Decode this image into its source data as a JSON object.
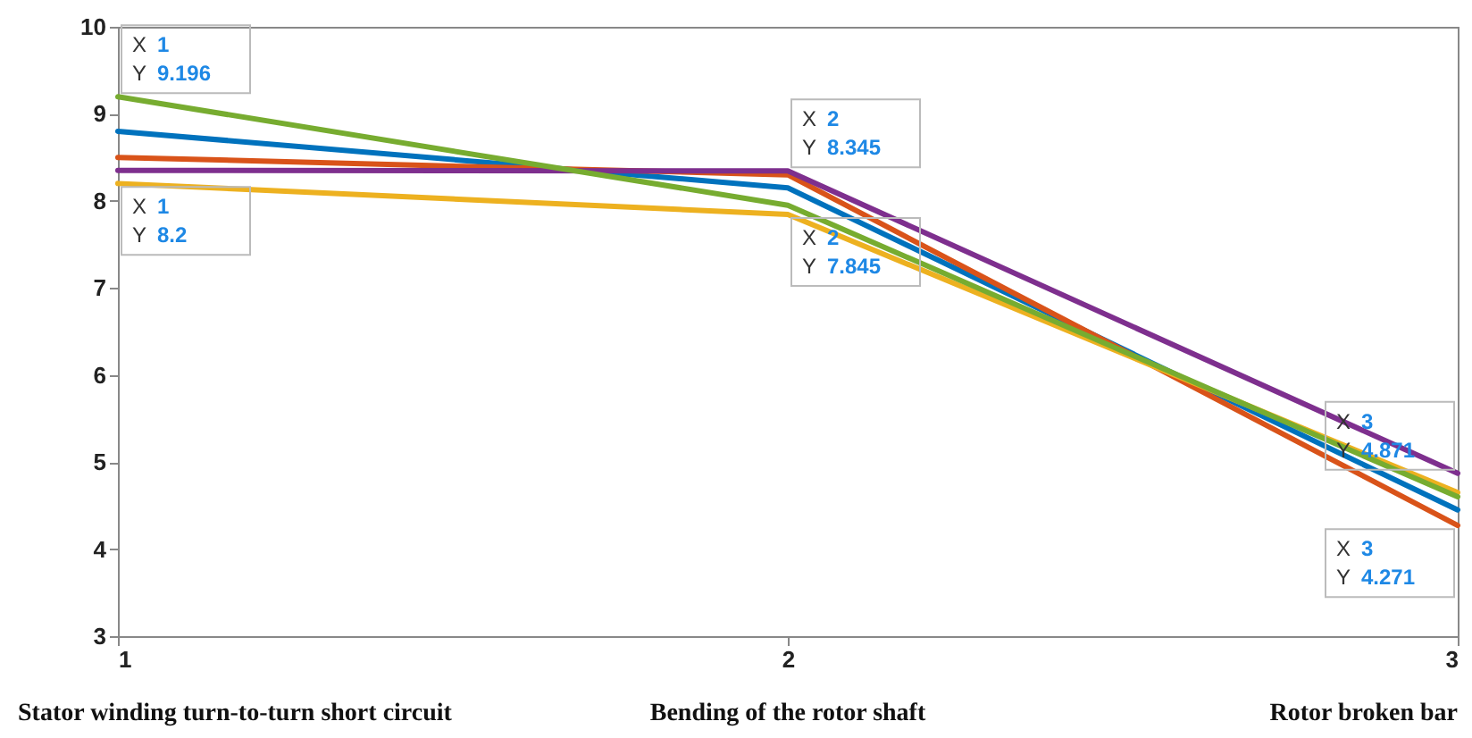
{
  "chart_data": {
    "type": "line",
    "x": [
      1,
      2,
      3
    ],
    "xlim": [
      1,
      3
    ],
    "xticks": [
      1,
      2,
      3
    ],
    "ylim": [
      3,
      10
    ],
    "yticks": [
      3,
      4,
      5,
      6,
      7,
      8,
      9,
      10
    ],
    "series": [
      {
        "color": "#0072bd",
        "values": [
          8.8,
          8.15,
          4.45
        ]
      },
      {
        "color": "#d95319",
        "values": [
          8.5,
          8.3,
          4.271
        ]
      },
      {
        "color": "#edb120",
        "values": [
          8.2,
          7.845,
          4.65
        ]
      },
      {
        "color": "#7e2f8e",
        "values": [
          8.35,
          8.345,
          4.871
        ]
      },
      {
        "color": "#77ac30",
        "values": [
          9.196,
          7.95,
          4.6
        ]
      }
    ],
    "annotations": [
      "Stator winding turn-to-turn short circuit",
      "Bending of the rotor shaft",
      "Rotor broken bar",
      {
        "text": "X 1\nY 9.196",
        "x": 1,
        "y": 9.196
      },
      {
        "text": "X 1\nY 8.2",
        "x": 1,
        "y": 8.2
      },
      {
        "text": "X 2\nY 8.345",
        "x": 2,
        "y": 8.345
      },
      {
        "text": "X 2\nY 7.845",
        "x": 2,
        "y": 7.845
      },
      {
        "text": "X 3\nY 4.871",
        "x": 3,
        "y": 4.871
      },
      {
        "text": "X 3\nY 4.271",
        "x": 3,
        "y": 4.271
      }
    ]
  }
}
